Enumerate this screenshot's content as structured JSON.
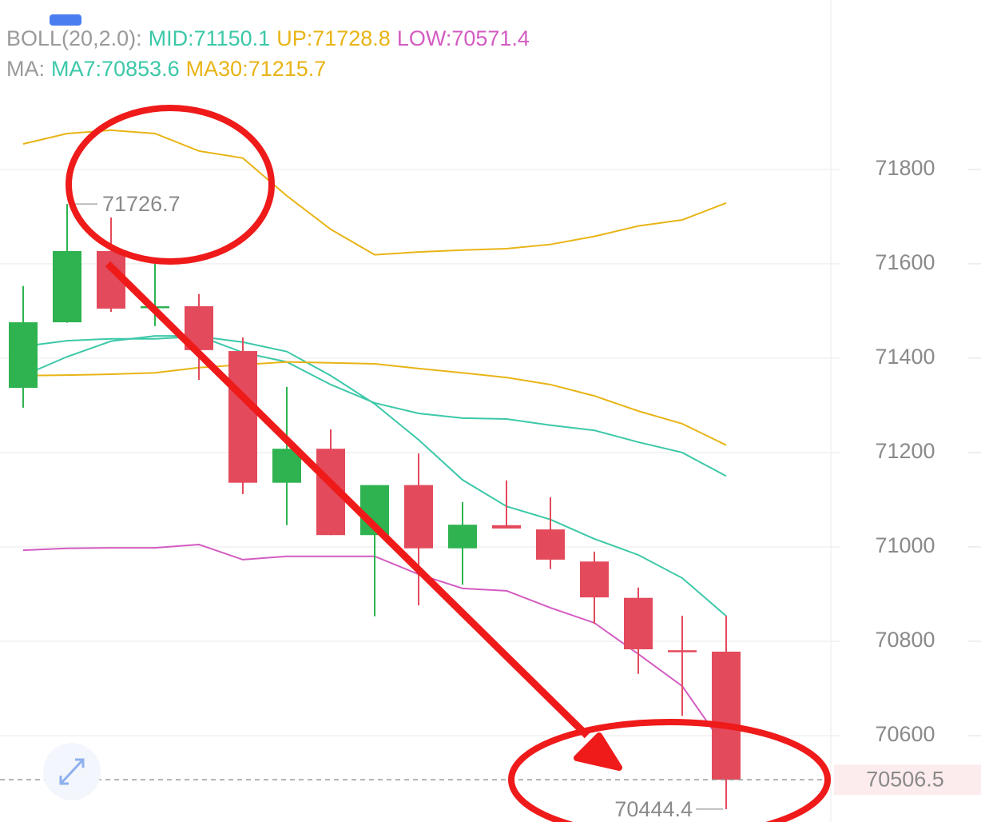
{
  "chart_data": {
    "type": "candlestick",
    "legend_rows": [
      {
        "title": "BOLL(20,2.0):",
        "series": [
          0,
          1,
          2
        ]
      },
      {
        "title": "MA:",
        "series": [
          3,
          4
        ]
      }
    ],
    "open": [
      71337,
      71476,
      71627,
      71507,
      71510,
      71415,
      71136,
      71208,
      71025,
      71131,
      70997,
      71046,
      71037,
      70969,
      70892,
      70781,
      70778
    ],
    "high": [
      71553,
      71726.7,
      71698,
      71600,
      71536,
      71444,
      71339,
      71249,
      71131,
      71198,
      71095,
      71141,
      71105,
      70990,
      70914,
      70854,
      70854
    ],
    "low": [
      71295,
      71475,
      71498,
      71468,
      71354,
      71112,
      71046,
      71025,
      70853,
      70876,
      70920,
      71039,
      70953,
      70837,
      70731,
      70642,
      70444.4
    ],
    "close": [
      71476,
      71627,
      71505,
      71510,
      71417,
      71136,
      71208,
      71025,
      71131,
      70997,
      71047,
      71039,
      70973,
      70893,
      70783,
      70780,
      70506.5
    ],
    "up_color": "#2eb350",
    "down_color": "#e34a5b",
    "series": [
      {
        "name": "MID:",
        "last_label": "71150.1",
        "color": "#3cc8a8",
        "values": [
          71363,
          71403,
          71436,
          71447,
          71447,
          71412,
          71392,
          71344,
          71305,
          71283,
          71273,
          71271,
          71258,
          71247,
          71222,
          71200,
          71150.1
        ]
      },
      {
        "name": "UP:",
        "last_label": "71728.8",
        "color": "#e8b416",
        "values": [
          71854,
          71876,
          71883,
          71876,
          71839,
          71824,
          71744,
          71673,
          71619,
          71625,
          71629,
          71632,
          71641,
          71658,
          71680,
          71693,
          71728.8
        ]
      },
      {
        "name": "LOW:",
        "last_label": "70571.4",
        "color": "#d35cc2",
        "values": [
          70993,
          70997,
          70998,
          70998,
          71005,
          70973,
          70980,
          70980,
          70980,
          70942,
          70912,
          70907,
          70871,
          70839,
          70773,
          70705,
          70571.4
        ]
      },
      {
        "name": "MA7:",
        "last_label": "70853.6",
        "color": "#3cc8a8",
        "values": [
          71425,
          71437,
          71441,
          71441,
          71446,
          71434,
          71414,
          71363,
          71303,
          71227,
          71142,
          71086,
          71058,
          71017,
          70983,
          70934,
          70853.6
        ]
      },
      {
        "name": "MA30:",
        "last_label": "71215.7",
        "color": "#e8b416",
        "values": [
          71363,
          71364,
          71366,
          71369,
          71380,
          71386,
          71392,
          71390,
          71388,
          71378,
          71369,
          71359,
          71344,
          71320,
          71288,
          71261,
          71215.7
        ]
      }
    ],
    "high_label": "71726.7",
    "low_label": "70444.4",
    "last_price": {
      "value": 70506.5,
      "label": "70506.5"
    },
    "ylim": [
      70417,
      72159
    ],
    "yticks": [
      70600,
      70800,
      71000,
      71200,
      71400,
      71600,
      71800
    ],
    "grid": true
  }
}
